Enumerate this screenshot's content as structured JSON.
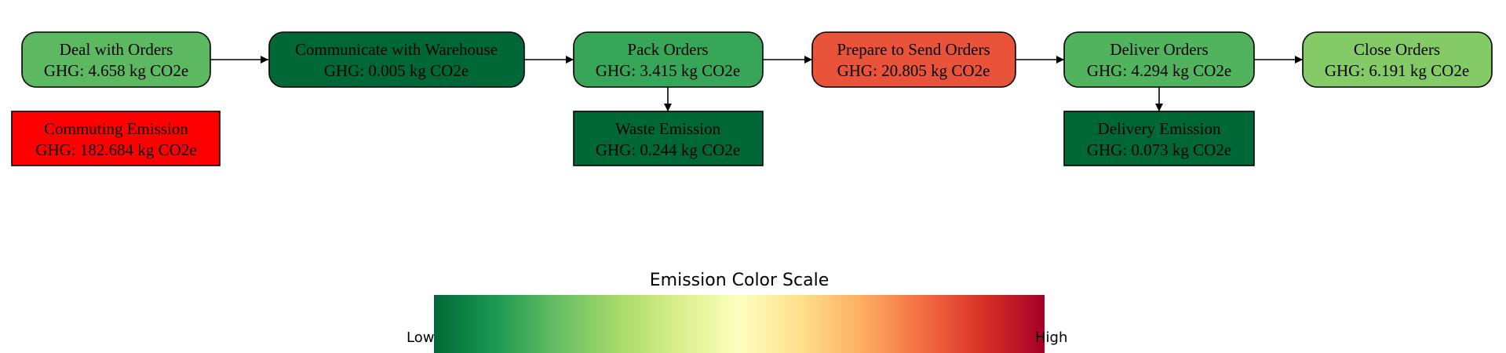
{
  "process_nodes": [
    {
      "id": "deal",
      "name": "Deal with Orders",
      "ghg": "GHG: 4.658 kg CO2e",
      "color": "#5db961"
    },
    {
      "id": "communicate",
      "name": "Communicate with Warehouse",
      "ghg": "GHG: 0.005 kg CO2e",
      "color": "#006837"
    },
    {
      "id": "pack",
      "name": "Pack Orders",
      "ghg": "GHG: 3.415 kg CO2e",
      "color": "#37a659"
    },
    {
      "id": "prepare",
      "name": "Prepare to Send Orders",
      "ghg": "GHG: 20.805 kg CO2e",
      "color": "#e8533a"
    },
    {
      "id": "deliver",
      "name": "Deliver Orders",
      "ghg": "GHG: 4.294 kg CO2e",
      "color": "#51b35e"
    },
    {
      "id": "close",
      "name": "Close Orders",
      "ghg": "GHG: 6.191 kg CO2e",
      "color": "#84ca66"
    }
  ],
  "emission_nodes": [
    {
      "id": "commuting",
      "name": "Commuting Emission",
      "ghg": "GHG: 182.684 kg CO2e",
      "color": "#ff0000"
    },
    {
      "id": "waste",
      "name": "Waste Emission",
      "ghg": "GHG: 0.244 kg CO2e",
      "color": "#006837"
    },
    {
      "id": "delivery",
      "name": "Delivery Emission",
      "ghg": "GHG: 0.073 kg CO2e",
      "color": "#006837"
    }
  ],
  "edges": [
    {
      "from": "deal",
      "to": "communicate"
    },
    {
      "from": "communicate",
      "to": "pack"
    },
    {
      "from": "pack",
      "to": "prepare"
    },
    {
      "from": "prepare",
      "to": "deliver"
    },
    {
      "from": "deliver",
      "to": "close"
    },
    {
      "from": "pack",
      "to": "waste"
    },
    {
      "from": "deliver",
      "to": "delivery"
    }
  ],
  "legend": {
    "title": "Emission Color Scale",
    "low_label": "Low",
    "high_label": "High",
    "colormap": "RdYlGn (reversed)",
    "stops": [
      "#006837",
      "#1a9850",
      "#66bd63",
      "#a6d96a",
      "#d9ef8b",
      "#ffffbf",
      "#fee08b",
      "#fdae61",
      "#f46d43",
      "#d73027",
      "#a50026"
    ]
  }
}
